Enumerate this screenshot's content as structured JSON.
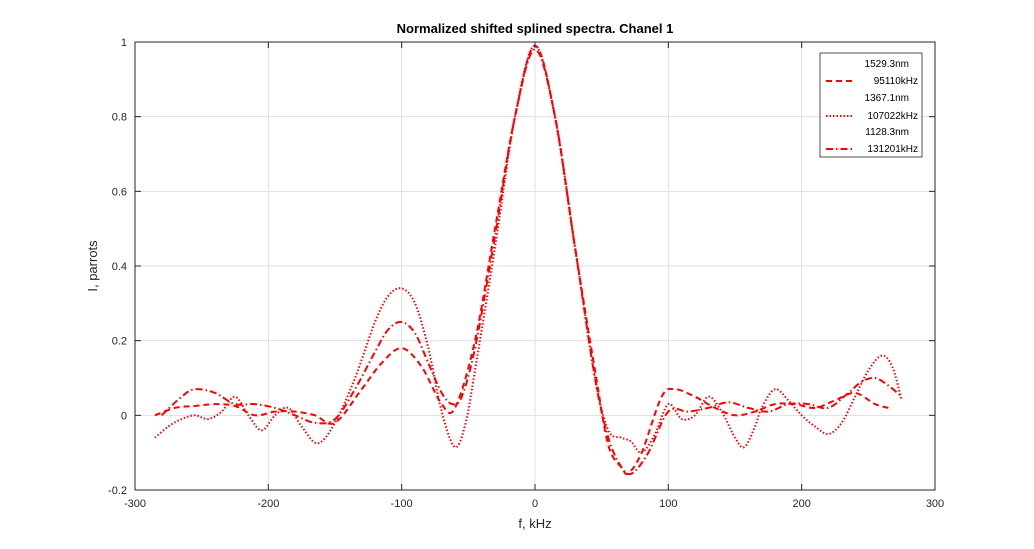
{
  "chart_data": {
    "type": "line",
    "title": "Normalized shifted splined spectra. Chanel 1",
    "xlabel": "f, kHz",
    "ylabel": "I, parrots",
    "xlim": [
      -300,
      300
    ],
    "ylim": [
      -0.2,
      1
    ],
    "x_ticks": [
      -300,
      -200,
      -100,
      0,
      100,
      200,
      300
    ],
    "x_tick_labels": [
      "-300",
      "-200",
      "-100",
      "0",
      "100",
      "200",
      "300"
    ],
    "y_ticks": [
      -0.2,
      0,
      0.2,
      0.4,
      0.6,
      0.8,
      1
    ],
    "y_tick_labels": [
      "-0.2",
      "0",
      "0.2",
      "0.4",
      "0.6",
      "0.8",
      "1"
    ],
    "grid": true,
    "legend_position": "top-right",
    "legend_entries": [
      "1529.3nm",
      "95110kHz",
      "1367.1nm",
      "107022kHz",
      "1128.3nm",
      "131201kHz"
    ],
    "series": [
      {
        "name": "1529.3nm 95110kHz",
        "style": "dashed",
        "color": "#ff0000",
        "x": [
          -285,
          -270,
          -255,
          -240,
          -225,
          -210,
          -195,
          -180,
          -165,
          -150,
          -130,
          -115,
          -100,
          -85,
          -70,
          -60,
          -45,
          -30,
          -15,
          0,
          15,
          30,
          45,
          55,
          65,
          70,
          80,
          95,
          105,
          120,
          135,
          150,
          165,
          180,
          195,
          210,
          225,
          240,
          255,
          265
        ],
        "y": [
          0.0,
          0.02,
          0.025,
          0.03,
          0.025,
          0.0,
          0.01,
          0.01,
          0.0,
          -0.02,
          0.07,
          0.14,
          0.18,
          0.13,
          0.03,
          0.02,
          0.2,
          0.5,
          0.8,
          0.99,
          0.8,
          0.45,
          0.12,
          -0.08,
          -0.14,
          -0.155,
          -0.1,
          0.05,
          0.07,
          0.05,
          0.02,
          0.0,
          0.01,
          0.03,
          0.03,
          0.02,
          0.04,
          0.06,
          0.03,
          0.02
        ]
      },
      {
        "name": "1367.1nm 107022kHz",
        "style": "dotted",
        "color": "#ff0000",
        "x": [
          -285,
          -275,
          -265,
          -255,
          -245,
          -235,
          -225,
          -215,
          -205,
          -195,
          -185,
          -175,
          -163,
          -150,
          -135,
          -120,
          -110,
          -100,
          -90,
          -80,
          -70,
          -60,
          -52,
          -45,
          -30,
          -15,
          0,
          15,
          30,
          45,
          55,
          65,
          72,
          80,
          90,
          100,
          110,
          120,
          130,
          140,
          150,
          157,
          165,
          170,
          180,
          190,
          200,
          210,
          220,
          230,
          240,
          250,
          260,
          268,
          275
        ],
        "y": [
          -0.06,
          -0.03,
          -0.01,
          0.0,
          -0.01,
          0.01,
          0.05,
          0.0,
          -0.04,
          0.0,
          0.02,
          -0.03,
          -0.075,
          -0.02,
          0.1,
          0.25,
          0.32,
          0.34,
          0.3,
          0.18,
          0.01,
          -0.085,
          -0.02,
          0.12,
          0.45,
          0.8,
          0.99,
          0.8,
          0.45,
          0.1,
          -0.04,
          -0.06,
          -0.07,
          -0.1,
          -0.05,
          0.03,
          -0.01,
          0.0,
          0.05,
          0.01,
          -0.06,
          -0.085,
          -0.03,
          0.02,
          0.07,
          0.04,
          0.0,
          -0.03,
          -0.05,
          -0.02,
          0.05,
          0.12,
          0.16,
          0.13,
          0.04
        ]
      },
      {
        "name": "1128.3nm 131201kHz",
        "style": "dash-dot",
        "color": "#ff0000",
        "x": [
          -280,
          -265,
          -255,
          -240,
          -225,
          -210,
          -195,
          -180,
          -165,
          -150,
          -135,
          -120,
          -110,
          -100,
          -90,
          -80,
          -70,
          -62,
          -55,
          -45,
          -30,
          -15,
          0,
          15,
          30,
          45,
          55,
          65,
          73,
          85,
          100,
          115,
          130,
          145,
          160,
          175,
          190,
          205,
          220,
          235,
          245,
          255,
          265,
          275
        ],
        "y": [
          0.0,
          0.05,
          0.07,
          0.06,
          0.03,
          0.03,
          0.02,
          0.0,
          -0.02,
          -0.01,
          0.07,
          0.17,
          0.23,
          0.25,
          0.22,
          0.14,
          0.06,
          0.03,
          0.05,
          0.18,
          0.48,
          0.8,
          0.98,
          0.8,
          0.45,
          0.1,
          -0.06,
          -0.14,
          -0.155,
          -0.1,
          0.01,
          0.01,
          0.02,
          0.035,
          0.02,
          0.01,
          0.03,
          0.03,
          0.02,
          0.06,
          0.09,
          0.1,
          0.08,
          0.05
        ]
      }
    ]
  }
}
